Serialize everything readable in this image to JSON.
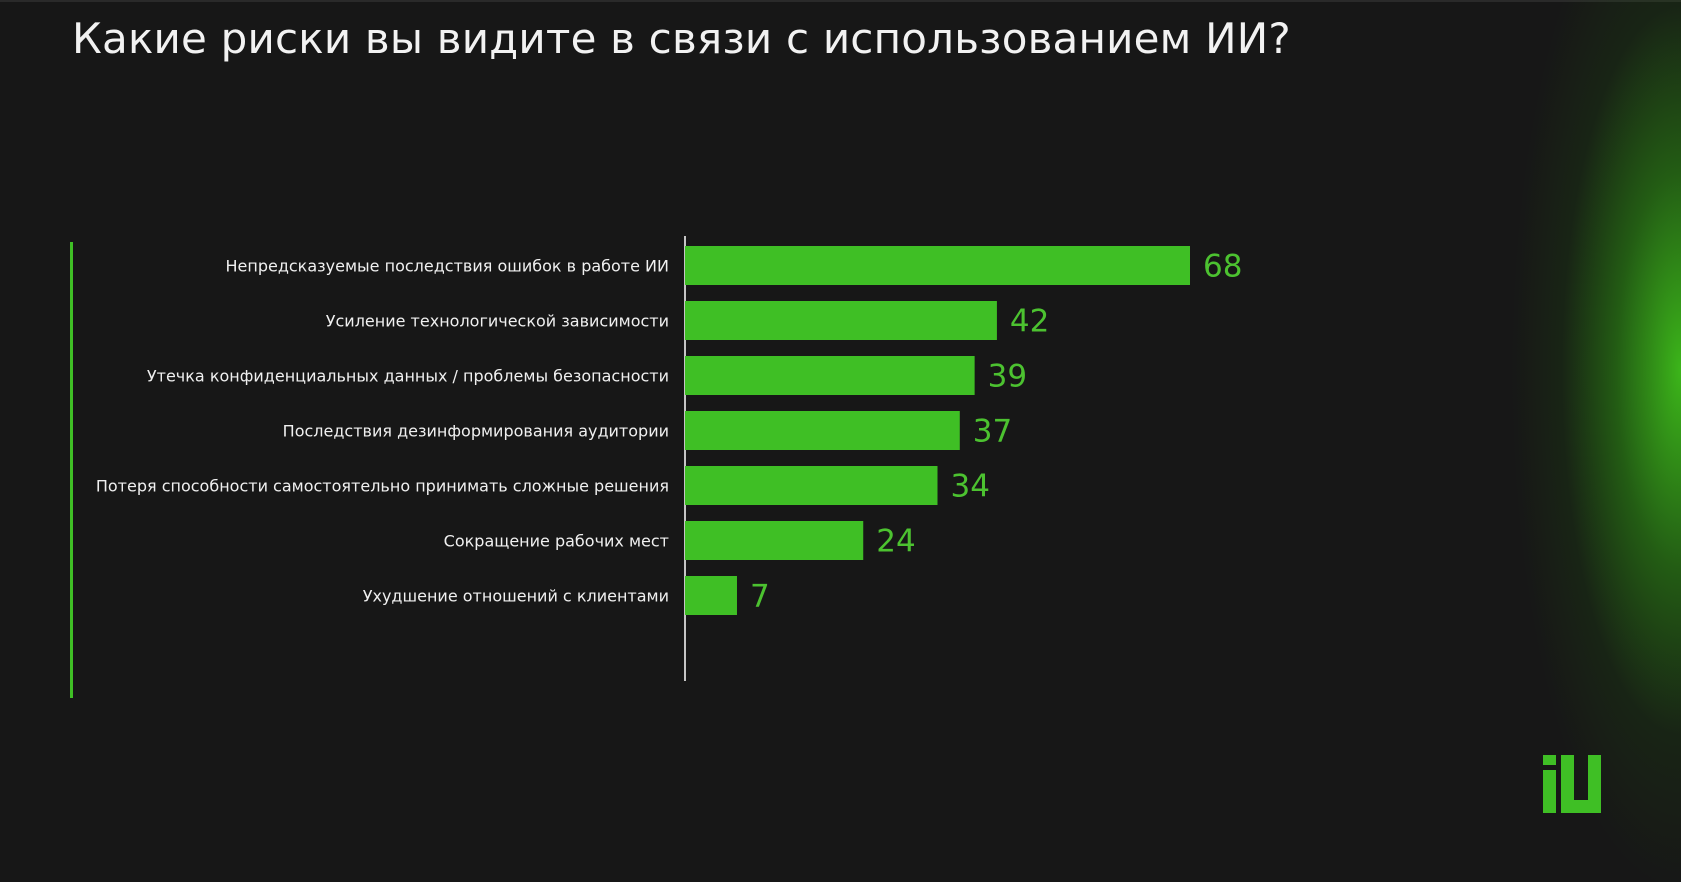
{
  "title": "Какие риски вы видите в связи с использованием ИИ?",
  "colors": {
    "background": "#171717",
    "bar": "#3fbf25",
    "value_text": "#4cc230",
    "label_text": "#f0f0f0"
  },
  "logo": {
    "icon": "iu-logo-icon"
  },
  "chart_data": {
    "type": "bar",
    "orientation": "horizontal",
    "categories": [
      "Непредсказуемые последствия ошибок в работе ИИ",
      "Усиление технологической зависимости",
      "Утечка конфиденциальных данных / проблемы безопасности",
      "Последствия дезинформирования аудитории",
      "Потеря способности самостоятельно принимать сложные решения",
      "Сокращение рабочих мест",
      "Ухудшение отношений с клиентами"
    ],
    "values": [
      68,
      42,
      39,
      37,
      34,
      24,
      7
    ],
    "data_labels": [
      "68",
      "42",
      "39",
      "37",
      "34",
      "24",
      "7"
    ],
    "xlim": [
      0,
      68
    ],
    "grid": false,
    "legend": "none"
  }
}
